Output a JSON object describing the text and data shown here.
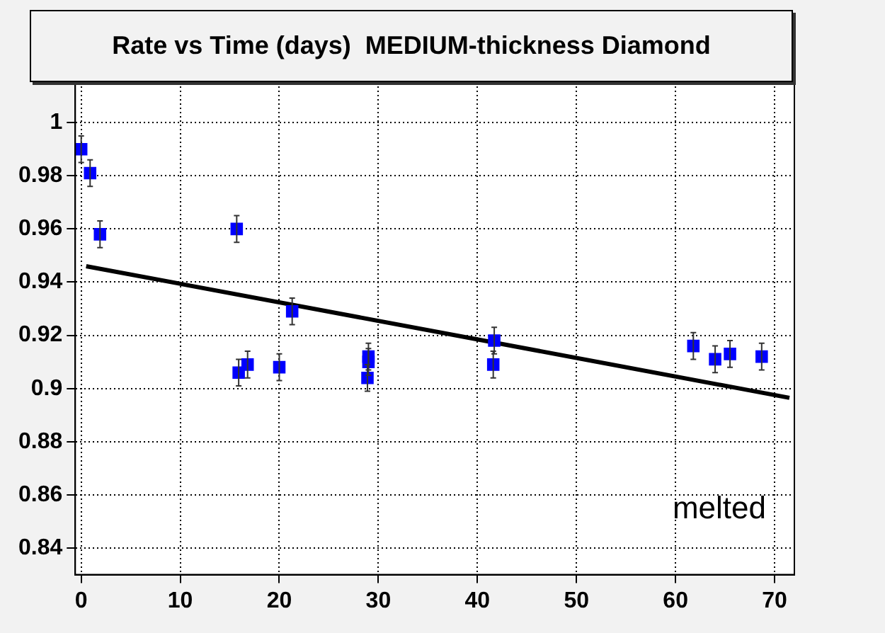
{
  "chart_data": {
    "type": "scatter",
    "title": "Rate vs Time (days)  MEDIUM-thickness Diamond",
    "annotations": [
      "melted"
    ],
    "xlim": [
      -0.6,
      72
    ],
    "xticks": [
      0,
      10,
      20,
      30,
      40,
      50,
      60,
      70
    ],
    "ylim": [
      0.83,
      1.02
    ],
    "yticks": [
      0.84,
      0.86,
      0.88,
      0.9,
      0.92,
      0.94,
      0.96,
      0.98,
      {
        "value": 1,
        "label": "1"
      }
    ],
    "grid": true,
    "legend": false,
    "marker": "square",
    "series": [
      {
        "color": "#0000ff",
        "x": [
          0,
          0.9,
          1.9,
          15.7,
          15.9,
          16.8,
          20,
          21.3,
          28.9,
          29,
          29,
          41.7,
          41.6,
          61.8,
          64,
          65.5,
          68.7
        ],
        "values": [
          0.99,
          0.981,
          0.958,
          0.96,
          0.906,
          0.909,
          0.908,
          0.929,
          0.904,
          0.91,
          0.912,
          0.918,
          0.909,
          0.916,
          0.911,
          0.913,
          0.912
        ],
        "errors": [
          0.005,
          0.005,
          0.005,
          0.005,
          0.005,
          0.005,
          0.005,
          0.005,
          0.005,
          0.005,
          0.005,
          0.005,
          0.005,
          0.005,
          0.005,
          0.005,
          0.005
        ]
      },
      {
        "type": "line",
        "color": "#000000",
        "marker": "none",
        "line_style": "solid",
        "x": [
          0.5,
          71.5
        ],
        "values": [
          0.946,
          0.8965
        ]
      }
    ]
  }
}
